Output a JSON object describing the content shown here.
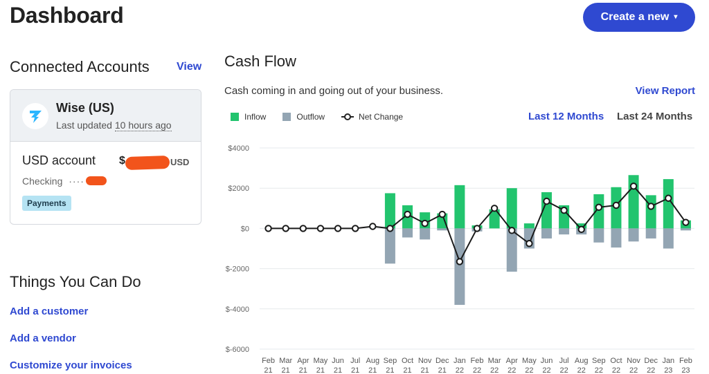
{
  "header": {
    "title": "Dashboard",
    "create_label": "Create a new",
    "create_caret": "▾"
  },
  "connected": {
    "title": "Connected Accounts",
    "view_label": "View",
    "account": {
      "name": "Wise (US)",
      "updated_prefix": "Last updated ",
      "updated_ago": "10 hours ago",
      "sub_account": "USD account",
      "balance_prefix": "$",
      "currency": "USD",
      "type": "Checking",
      "mask": "····",
      "badge": "Payments"
    }
  },
  "things": {
    "title": "Things You Can Do",
    "items": [
      "Add a customer",
      "Add a vendor",
      "Customize your invoices"
    ]
  },
  "cashflow": {
    "title": "Cash Flow",
    "subtitle": "Cash coming in and going out of your business.",
    "view_report": "View Report",
    "legend": {
      "inflow": "Inflow",
      "outflow": "Outflow",
      "net": "Net Change"
    },
    "ranges": [
      "Last 12 Months",
      "Last 24 Months"
    ],
    "active_range": "Last 12 Months",
    "colors": {
      "inflow": "#22c46e",
      "outflow": "#93a5b3",
      "net": "#1a1a1a"
    }
  },
  "chart_data": {
    "type": "bar",
    "categories": [
      [
        "Feb",
        "21"
      ],
      [
        "Mar",
        "21"
      ],
      [
        "Apr",
        "21"
      ],
      [
        "May",
        "21"
      ],
      [
        "Jun",
        "21"
      ],
      [
        "Jul",
        "21"
      ],
      [
        "Aug",
        "21"
      ],
      [
        "Sep",
        "21"
      ],
      [
        "Oct",
        "21"
      ],
      [
        "Nov",
        "21"
      ],
      [
        "Dec",
        "21"
      ],
      [
        "Jan",
        "22"
      ],
      [
        "Feb",
        "22"
      ],
      [
        "Mar",
        "22"
      ],
      [
        "Apr",
        "22"
      ],
      [
        "May",
        "22"
      ],
      [
        "Jun",
        "22"
      ],
      [
        "Jul",
        "22"
      ],
      [
        "Aug",
        "22"
      ],
      [
        "Sep",
        "22"
      ],
      [
        "Oct",
        "22"
      ],
      [
        "Nov",
        "22"
      ],
      [
        "Dec",
        "22"
      ],
      [
        "Jan",
        "23"
      ],
      [
        "Feb",
        "23"
      ]
    ],
    "series": [
      {
        "name": "Inflow",
        "values": [
          0,
          0,
          0,
          0,
          0,
          0,
          0,
          1750,
          1150,
          800,
          750,
          2150,
          150,
          950,
          2000,
          250,
          1800,
          1150,
          250,
          1700,
          2050,
          2650,
          1650,
          2450,
          400
        ]
      },
      {
        "name": "Outflow",
        "values": [
          0,
          0,
          0,
          0,
          0,
          0,
          0,
          -1750,
          -450,
          -550,
          -100,
          -3800,
          -150,
          0,
          -2150,
          -1000,
          -500,
          -300,
          -300,
          -700,
          -950,
          -650,
          -500,
          -1000,
          -100
        ]
      },
      {
        "name": "Net Change",
        "values": [
          0,
          0,
          0,
          0,
          0,
          0,
          100,
          0,
          700,
          250,
          700,
          -1650,
          0,
          1000,
          -100,
          -750,
          1350,
          900,
          -50,
          1050,
          1150,
          2100,
          1100,
          1500,
          300
        ]
      }
    ],
    "yticks": [
      "$4000",
      "$2000",
      "$0",
      "$-2000",
      "$-4000",
      "$-6000"
    ],
    "ylim": [
      -6000,
      4000
    ],
    "grid": true,
    "legend_position": "top-left"
  }
}
